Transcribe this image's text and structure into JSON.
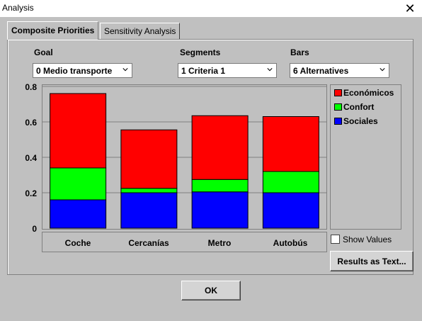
{
  "window": {
    "title": "Analysis"
  },
  "tabs": [
    {
      "label": "Composite Priorities",
      "active": true
    },
    {
      "label": "Sensitivity Analysis",
      "active": false
    }
  ],
  "controls": {
    "goal_label": "Goal",
    "goal_value": "0 Medio transporte",
    "segments_label": "Segments",
    "segments_value": "1 Criteria 1",
    "bars_label": "Bars",
    "bars_value": "6 Alternatives"
  },
  "show_values_label": "Show Values",
  "show_values_checked": false,
  "results_button_label": "Results as Text...",
  "ok_button_label": "OK",
  "colors": {
    "Económicos": "#ff0000",
    "Confort": "#00ff00",
    "Sociales": "#0000ff"
  },
  "chart_data": {
    "type": "bar",
    "stacked": true,
    "categories": [
      "Coche",
      "Cercanías",
      "Metro",
      "Autobús"
    ],
    "series": [
      {
        "name": "Sociales",
        "color": "#0000ff",
        "values": [
          0.16,
          0.2,
          0.205,
          0.2
        ]
      },
      {
        "name": "Confort",
        "color": "#00ff00",
        "values": [
          0.18,
          0.025,
          0.07,
          0.12
        ]
      },
      {
        "name": "Económicos",
        "color": "#ff0000",
        "values": [
          0.42,
          0.33,
          0.36,
          0.31
        ]
      }
    ],
    "legend_order": [
      "Económicos",
      "Confort",
      "Sociales"
    ],
    "yticks": [
      "0",
      "0.2",
      "0.4",
      "0.6",
      "0.8"
    ],
    "ylim": [
      0,
      0.8
    ],
    "grid": true,
    "legend_position": "right"
  }
}
